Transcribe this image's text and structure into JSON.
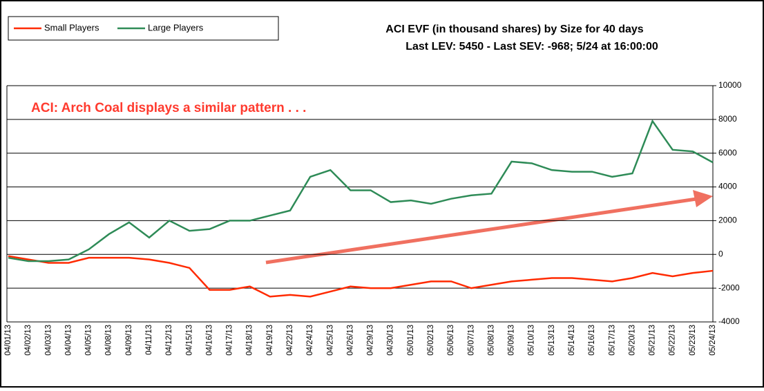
{
  "chart_data": {
    "type": "line",
    "title": "ACI EVF (in thousand shares) by Size for 40 days",
    "subtitle": "Last LEV: 5450 - Last SEV: -968; 5/24 at 16:00:00",
    "annotation": "ACI: Arch Coal displays a similar pattern . . .",
    "categories": [
      "04/01/13",
      "04/02/13",
      "04/03/13",
      "04/04/13",
      "04/05/13",
      "04/08/13",
      "04/09/13",
      "04/11/13",
      "04/12/13",
      "04/15/13",
      "04/16/13",
      "04/17/13",
      "04/18/13",
      "04/19/13",
      "04/22/13",
      "04/24/13",
      "04/25/13",
      "04/26/13",
      "04/29/13",
      "04/30/13",
      "05/01/13",
      "05/02/13",
      "05/06/13",
      "05/07/13",
      "05/08/13",
      "05/09/13",
      "05/10/13",
      "05/13/13",
      "05/14/13",
      "05/16/13",
      "05/17/13",
      "05/20/13",
      "05/21/13",
      "05/22/13",
      "05/23/13",
      "05/24/13"
    ],
    "series": [
      {
        "name": "Small Players",
        "color": "#ff2a00",
        "values": [
          -100,
          -300,
          -500,
          -500,
          -200,
          -200,
          -200,
          -300,
          -500,
          -800,
          -2100,
          -2100,
          -1900,
          -2500,
          -2400,
          -2500,
          -2200,
          -1900,
          -2000,
          -2000,
          -1800,
          -1600,
          -1600,
          -2000,
          -1800,
          -1600,
          -1500,
          -1400,
          -1400,
          -1500,
          -1600,
          -1400,
          -1100,
          -1300,
          -1100,
          -968
        ]
      },
      {
        "name": "Large Players",
        "color": "#2e8b57",
        "values": [
          -200,
          -400,
          -400,
          -300,
          300,
          1200,
          1900,
          1000,
          2000,
          1400,
          1500,
          2000,
          2000,
          2300,
          2600,
          4600,
          5000,
          3800,
          3800,
          3100,
          3200,
          3000,
          3300,
          3500,
          3600,
          5500,
          5400,
          5000,
          4900,
          4900,
          4600,
          4800,
          7900,
          6200,
          6100,
          5450
        ]
      }
    ],
    "ylim": [
      -4000,
      10000
    ],
    "yticks": [
      -4000,
      -2000,
      0,
      2000,
      4000,
      6000,
      8000,
      10000
    ],
    "grid": true
  }
}
